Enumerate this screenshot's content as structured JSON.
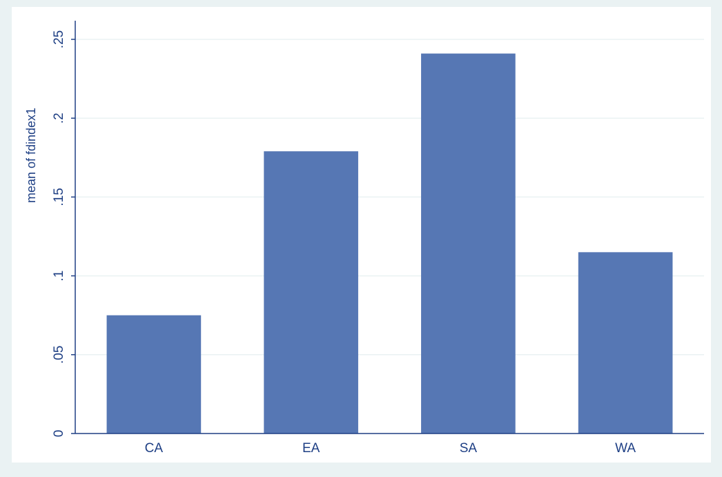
{
  "chart_data": {
    "type": "bar",
    "categories": [
      "CA",
      "EA",
      "SA",
      "WA"
    ],
    "values": [
      0.075,
      0.179,
      0.241,
      0.115
    ],
    "title": "",
    "xlabel": "",
    "ylabel": "mean of fdindex1",
    "ylim": [
      0,
      0.26
    ],
    "yticks": [
      0,
      0.05,
      0.1,
      0.15,
      0.2,
      0.25
    ],
    "ytick_labels": [
      "0",
      ".05",
      ".1",
      ".15",
      ".2",
      ".25"
    ],
    "grid": true,
    "legend": "none"
  },
  "colors": {
    "bar": "#5677b4",
    "axis": "#1e3f84",
    "grid": "#eaf2f3",
    "plot_background": "#ffffff",
    "outer_background": "#eaf2f3"
  }
}
